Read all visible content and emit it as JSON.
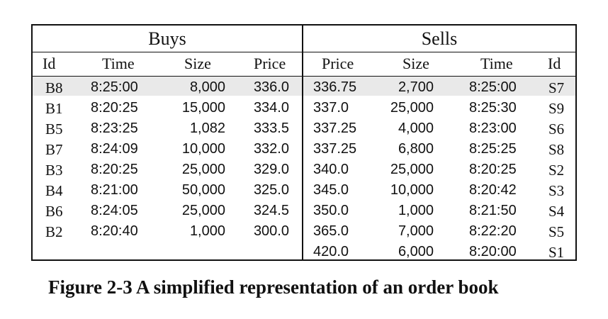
{
  "buys": {
    "title": "Buys",
    "headers": {
      "id": "Id",
      "time": "Time",
      "size": "Size",
      "price": "Price"
    },
    "rows": [
      {
        "id": "B8",
        "time": "8:25:00",
        "size": "8,000",
        "price": "336.0"
      },
      {
        "id": "B1",
        "time": "8:20:25",
        "size": "15,000",
        "price": "334.0"
      },
      {
        "id": "B5",
        "time": "8:23:25",
        "size": "1,082",
        "price": "333.5"
      },
      {
        "id": "B7",
        "time": "8:24:09",
        "size": "10,000",
        "price": "332.0"
      },
      {
        "id": "B3",
        "time": "8:20:25",
        "size": "25,000",
        "price": "329.0"
      },
      {
        "id": "B4",
        "time": "8:21:00",
        "size": "50,000",
        "price": "325.0"
      },
      {
        "id": "B6",
        "time": "8:24:05",
        "size": "25,000",
        "price": "324.5"
      },
      {
        "id": "B2",
        "time": "8:20:40",
        "size": "1,000",
        "price": "300.0"
      }
    ]
  },
  "sells": {
    "title": "Sells",
    "headers": {
      "price": "Price",
      "size": "Size",
      "time": "Time",
      "id": "Id"
    },
    "rows": [
      {
        "price": "336.75",
        "size": "2,700",
        "time": "8:25:00",
        "id": "S7"
      },
      {
        "price": "337.0",
        "size": "25,000",
        "time": "8:25:30",
        "id": "S9"
      },
      {
        "price": "337.25",
        "size": "4,000",
        "time": "8:23:00",
        "id": "S6"
      },
      {
        "price": "337.25",
        "size": "6,800",
        "time": "8:25:25",
        "id": "S8"
      },
      {
        "price": "340.0",
        "size": "25,000",
        "time": "8:20:25",
        "id": "S2"
      },
      {
        "price": "345.0",
        "size": "10,000",
        "time": "8:20:42",
        "id": "S3"
      },
      {
        "price": "350.0",
        "size": "1,000",
        "time": "8:21:50",
        "id": "S4"
      },
      {
        "price": "365.0",
        "size": "7,000",
        "time": "8:22:20",
        "id": "S5"
      },
      {
        "price": "420.0",
        "size": "6,000",
        "time": "8:20:00",
        "id": "S1"
      }
    ]
  },
  "caption": "Figure 2-3 A simplified representation of an order book"
}
